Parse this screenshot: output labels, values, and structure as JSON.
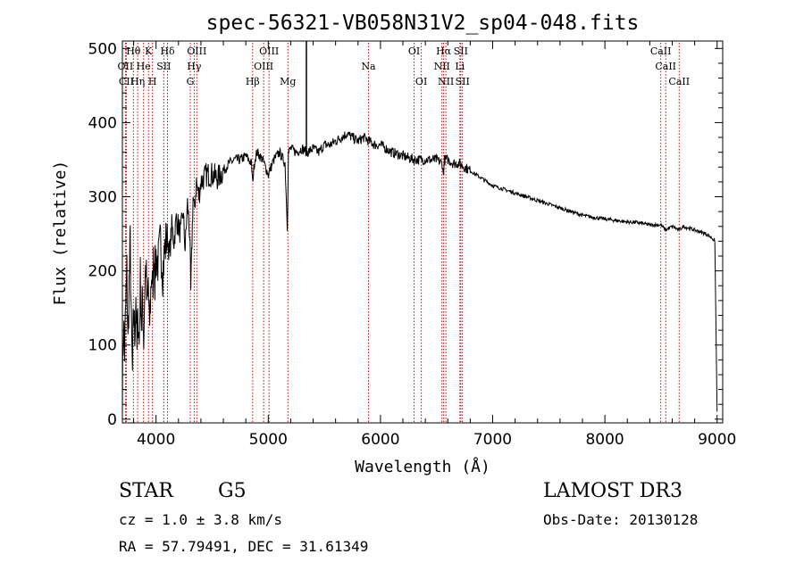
{
  "chart_data": {
    "type": "line",
    "title": "spec-56321-VB058N31V2_sp04-048.fits",
    "xlabel": "Wavelength (Å)",
    "ylabel": "Flux (relative)",
    "xlim": [
      3700,
      9050
    ],
    "ylim": [
      -5,
      510
    ],
    "x_ticks": [
      4000,
      5000,
      6000,
      7000,
      8000,
      9000
    ],
    "y_ticks": [
      0,
      100,
      200,
      300,
      400,
      500
    ],
    "series": [
      {
        "name": "flux",
        "x": [
          3700,
          3710,
          3720,
          3730,
          3740,
          3750,
          3760,
          3770,
          3780,
          3790,
          3800,
          3810,
          3820,
          3830,
          3840,
          3850,
          3860,
          3870,
          3880,
          3890,
          3900,
          3910,
          3920,
          3930,
          3940,
          3950,
          3960,
          3970,
          3980,
          3990,
          4000,
          4020,
          4040,
          4060,
          4080,
          4100,
          4120,
          4140,
          4160,
          4180,
          4200,
          4220,
          4240,
          4260,
          4280,
          4300,
          4310,
          4320,
          4330,
          4340,
          4360,
          4380,
          4400,
          4450,
          4500,
          4550,
          4600,
          4650,
          4700,
          4750,
          4800,
          4850,
          4860,
          4880,
          4900,
          4950,
          5000,
          5050,
          5100,
          5150,
          5170,
          5180,
          5200,
          5250,
          5300,
          5350,
          5400,
          5450,
          5500,
          5550,
          5600,
          5650,
          5700,
          5750,
          5800,
          5850,
          5900,
          5950,
          6000,
          6100,
          6200,
          6300,
          6400,
          6500,
          6550,
          6560,
          6570,
          6600,
          6650,
          6700,
          6800,
          6900,
          7000,
          7100,
          7200,
          7300,
          7400,
          7500,
          7600,
          7700,
          7800,
          7900,
          8000,
          8100,
          8200,
          8300,
          8400,
          8500,
          8540,
          8600,
          8660,
          8700,
          8800,
          8900,
          8950,
          8980,
          9000
        ],
        "y": [
          40,
          130,
          90,
          150,
          200,
          100,
          180,
          240,
          120,
          60,
          150,
          110,
          170,
          90,
          140,
          100,
          190,
          130,
          160,
          110,
          180,
          210,
          140,
          190,
          120,
          160,
          200,
          170,
          230,
          190,
          220,
          210,
          240,
          200,
          230,
          250,
          220,
          260,
          240,
          270,
          260,
          250,
          280,
          230,
          290,
          250,
          170,
          240,
          300,
          280,
          320,
          300,
          320,
          330,
          330,
          325,
          335,
          345,
          350,
          350,
          355,
          345,
          320,
          350,
          360,
          350,
          330,
          350,
          360,
          345,
          260,
          360,
          365,
          360,
          365,
          360,
          365,
          360,
          370,
          370,
          375,
          380,
          385,
          380,
          375,
          380,
          375,
          370,
          370,
          360,
          355,
          350,
          350,
          350,
          345,
          330,
          350,
          350,
          345,
          345,
          335,
          325,
          315,
          310,
          305,
          300,
          295,
          290,
          285,
          280,
          275,
          272,
          270,
          268,
          266,
          265,
          262,
          262,
          255,
          260,
          255,
          260,
          255,
          250,
          245,
          240,
          10
        ],
        "color": "#000000"
      }
    ],
    "line_labels": [
      {
        "text": "Hθ",
        "wavelength": 3798,
        "row": 1
      },
      {
        "text": "OII",
        "wavelength": 3727,
        "row": 2
      },
      {
        "text": "CII",
        "wavelength": 3735,
        "row": 3
      },
      {
        "text": "Hη",
        "wavelength": 3836,
        "row": 3
      },
      {
        "text": "He",
        "wavelength": 3889,
        "row": 2
      },
      {
        "text": "K",
        "wavelength": 3933,
        "row": 1
      },
      {
        "text": "H",
        "wavelength": 3968,
        "row": 3
      },
      {
        "text": "Hδ",
        "wavelength": 4102,
        "row": 1
      },
      {
        "text": "SII",
        "wavelength": 4069,
        "row": 2
      },
      {
        "text": "OIII",
        "wavelength": 4363,
        "row": 1
      },
      {
        "text": "Hγ",
        "wavelength": 4340,
        "row": 2
      },
      {
        "text": "G",
        "wavelength": 4305,
        "row": 3
      },
      {
        "text": "Hβ",
        "wavelength": 4861,
        "row": 3
      },
      {
        "text": "OIII",
        "wavelength": 5007,
        "row": 1
      },
      {
        "text": "OIII",
        "wavelength": 4959,
        "row": 2
      },
      {
        "text": "Mg",
        "wavelength": 5175,
        "row": 3
      },
      {
        "text": "Na",
        "wavelength": 5893,
        "row": 2
      },
      {
        "text": "OI",
        "wavelength": 6300,
        "row": 1
      },
      {
        "text": "OI",
        "wavelength": 6364,
        "row": 3
      },
      {
        "text": "Hα",
        "wavelength": 6563,
        "row": 1
      },
      {
        "text": "NII",
        "wavelength": 6548,
        "row": 2
      },
      {
        "text": "NII",
        "wavelength": 6583,
        "row": 3
      },
      {
        "text": "SII",
        "wavelength": 6716,
        "row": 1
      },
      {
        "text": "Li",
        "wavelength": 6708,
        "row": 2
      },
      {
        "text": "SII",
        "wavelength": 6731,
        "row": 3
      },
      {
        "text": "CaII",
        "wavelength": 8498,
        "row": 1
      },
      {
        "text": "CaII",
        "wavelength": 8542,
        "row": 2
      },
      {
        "text": "CaII",
        "wavelength": 8662,
        "row": 3
      }
    ],
    "line_marker_color": "#cc0000"
  },
  "info": {
    "class_label": "STAR",
    "subclass_label": "G5",
    "survey_label": "LAMOST DR3",
    "cz_text": "cz = 1.0 ± 3.8 km/s",
    "obs_date_text": "Obs-Date: 20130128",
    "coords_text": "RA =  57.79491, DEC =  31.61349"
  }
}
